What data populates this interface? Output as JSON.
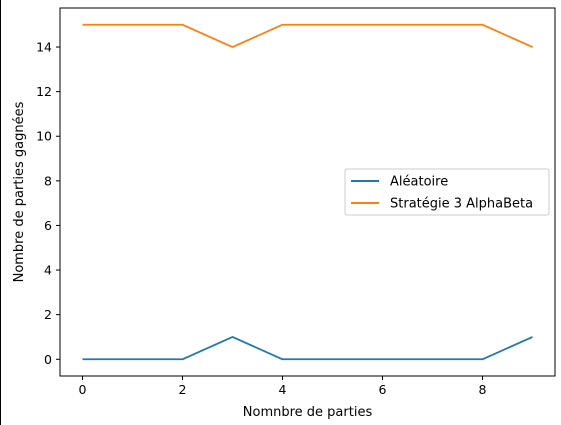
{
  "chart_data": {
    "type": "line",
    "title": "",
    "xlabel": "Nomnbre de parties",
    "ylabel": "Nombre de parties gagnées",
    "x": [
      0,
      1,
      2,
      3,
      4,
      5,
      6,
      7,
      8,
      9
    ],
    "xlim": [
      -0.45,
      9.45
    ],
    "ylim": [
      -0.75,
      15.75
    ],
    "xticks": [
      "0",
      "2",
      "4",
      "6",
      "8"
    ],
    "yticks": [
      "0",
      "2",
      "4",
      "6",
      "8",
      "10",
      "12",
      "14"
    ],
    "grid": false,
    "legend_position": "center-right",
    "series": [
      {
        "name": "Aléatoire",
        "color": "#1f77b4",
        "values": [
          0,
          0,
          0,
          1,
          0,
          0,
          0,
          0,
          0,
          1
        ]
      },
      {
        "name": "Stratégie 3 AlphaBeta",
        "color": "#ff7f0e",
        "values": [
          15,
          15,
          15,
          14,
          15,
          15,
          15,
          15,
          15,
          14
        ]
      }
    ]
  }
}
